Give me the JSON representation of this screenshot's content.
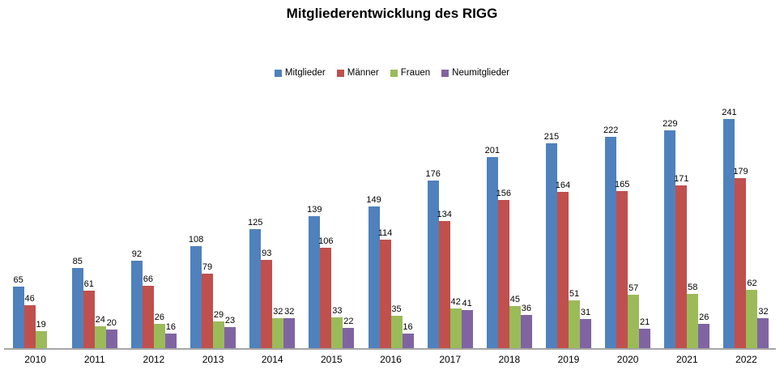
{
  "title": "Mitgliederentwicklung des RIGG",
  "legend": {
    "items": [
      {
        "label": "Mitglieder",
        "color": "#4f81bd"
      },
      {
        "label": "Männer",
        "color": "#c0504d"
      },
      {
        "label": "Frauen",
        "color": "#9bbb59"
      },
      {
        "label": "Neumitglieder",
        "color": "#8064a2"
      }
    ]
  },
  "colors": {
    "axis_line": "#a6a6a6",
    "text": "#000000",
    "background": "#ffffff"
  },
  "chart_data": {
    "type": "bar",
    "title": "Mitgliederentwicklung des RIGG",
    "xlabel": "",
    "ylabel": "",
    "categories": [
      "2010",
      "2011",
      "2012",
      "2013",
      "2014",
      "2015",
      "2016",
      "2017",
      "2018",
      "2019",
      "2020",
      "2021",
      "2022"
    ],
    "series": [
      {
        "name": "Mitglieder",
        "color": "#4f81bd",
        "values": [
          65,
          85,
          92,
          108,
          125,
          139,
          149,
          176,
          201,
          215,
          222,
          229,
          241
        ]
      },
      {
        "name": "Männer",
        "color": "#c0504d",
        "values": [
          46,
          61,
          66,
          79,
          93,
          106,
          114,
          134,
          156,
          164,
          165,
          171,
          179
        ]
      },
      {
        "name": "Frauen",
        "color": "#9bbb59",
        "values": [
          19,
          24,
          26,
          29,
          32,
          33,
          35,
          42,
          45,
          51,
          57,
          58,
          62
        ]
      },
      {
        "name": "Neumitglieder",
        "color": "#8064a2",
        "values": [
          null,
          20,
          16,
          23,
          32,
          22,
          16,
          41,
          36,
          31,
          21,
          26,
          32
        ]
      }
    ],
    "ylim": [
      0,
      250
    ],
    "grid": false,
    "y_axis_visible": false,
    "legend_position": "top",
    "data_labels": true
  }
}
